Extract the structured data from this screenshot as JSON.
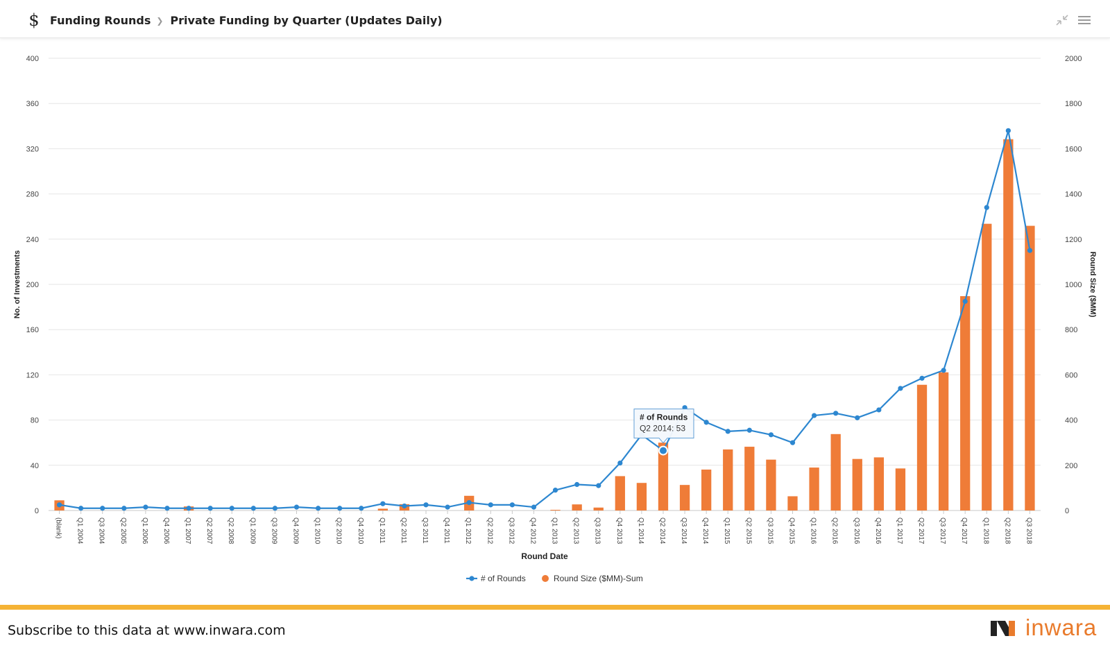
{
  "header": {
    "crumb1": "Funding Rounds",
    "crumb2": "Private Funding by Quarter (Updates Daily)"
  },
  "footer": {
    "subscribe_text": "Subscribe to this data at www.inwara.com",
    "logo_text": "inwara"
  },
  "icons": {
    "dollar": "dollar-icon",
    "collapse": "collapse-icon",
    "menu": "hamburger-menu-icon"
  },
  "colors": {
    "line": "#2d87d0",
    "bar": "#ef7c38",
    "footer_stripe": "#f5b335",
    "logo": "#e97b2c"
  },
  "chart_data": {
    "type": "bar+line",
    "xlabel": "Round Date",
    "ylabel_left": "No. of Investments",
    "ylabel_right": "Round Size ($MM)",
    "ylim_left": [
      0,
      400
    ],
    "yticks_left": [
      0,
      40,
      80,
      120,
      160,
      200,
      240,
      280,
      320,
      360,
      400
    ],
    "ylim_right": [
      0,
      2000
    ],
    "yticks_right": [
      0,
      200,
      400,
      600,
      800,
      1000,
      1200,
      1400,
      1600,
      1800,
      2000
    ],
    "grid": true,
    "legend_position": "bottom-center",
    "categories": [
      "(blank)",
      "Q1 2004",
      "Q3 2004",
      "Q2 2005",
      "Q1 2006",
      "Q4 2006",
      "Q1 2007",
      "Q2 2007",
      "Q2 2008",
      "Q1 2009",
      "Q3 2009",
      "Q4 2009",
      "Q1 2010",
      "Q2 2010",
      "Q4 2010",
      "Q1 2011",
      "Q2 2011",
      "Q3 2011",
      "Q4 2011",
      "Q1 2012",
      "Q2 2012",
      "Q3 2012",
      "Q4 2012",
      "Q1 2013",
      "Q2 2013",
      "Q3 2013",
      "Q4 2013",
      "Q1 2014",
      "Q2 2014",
      "Q3 2014",
      "Q4 2014",
      "Q1 2015",
      "Q2 2015",
      "Q3 2015",
      "Q4 2015",
      "Q1 2016",
      "Q2 2016",
      "Q3 2016",
      "Q4 2016",
      "Q1 2017",
      "Q2 2017",
      "Q3 2017",
      "Q4 2017",
      "Q1 2018",
      "Q2 2018",
      "Q3 2018"
    ],
    "series": [
      {
        "name": "# of Rounds",
        "type": "line",
        "axis": "left",
        "values": [
          5,
          2,
          2,
          2,
          3,
          2,
          2,
          2,
          2,
          2,
          2,
          3,
          2,
          2,
          2,
          6,
          4,
          5,
          3,
          7,
          5,
          5,
          3,
          18,
          23,
          22,
          42,
          67,
          53,
          91,
          78,
          70,
          71,
          67,
          60,
          84,
          86,
          82,
          89,
          108,
          117,
          124,
          185,
          268,
          336,
          230
        ]
      },
      {
        "name": "Round Size ($MM)-Sum",
        "type": "bar",
        "axis": "right",
        "values": [
          45,
          0,
          0,
          0,
          0,
          0,
          18,
          0,
          0,
          0,
          0,
          0,
          0,
          0,
          0,
          8,
          28,
          0,
          0,
          65,
          0,
          0,
          0,
          3,
          27,
          13,
          152,
          122,
          300,
          113,
          181,
          270,
          282,
          225,
          63,
          190,
          338,
          228,
          235,
          186,
          556,
          611,
          948,
          1268,
          1642,
          1259
        ]
      }
    ],
    "tooltip": {
      "title": "# of Rounds",
      "category": "Q2 2014",
      "value": 53,
      "text": "Q2 2014: 53"
    }
  }
}
